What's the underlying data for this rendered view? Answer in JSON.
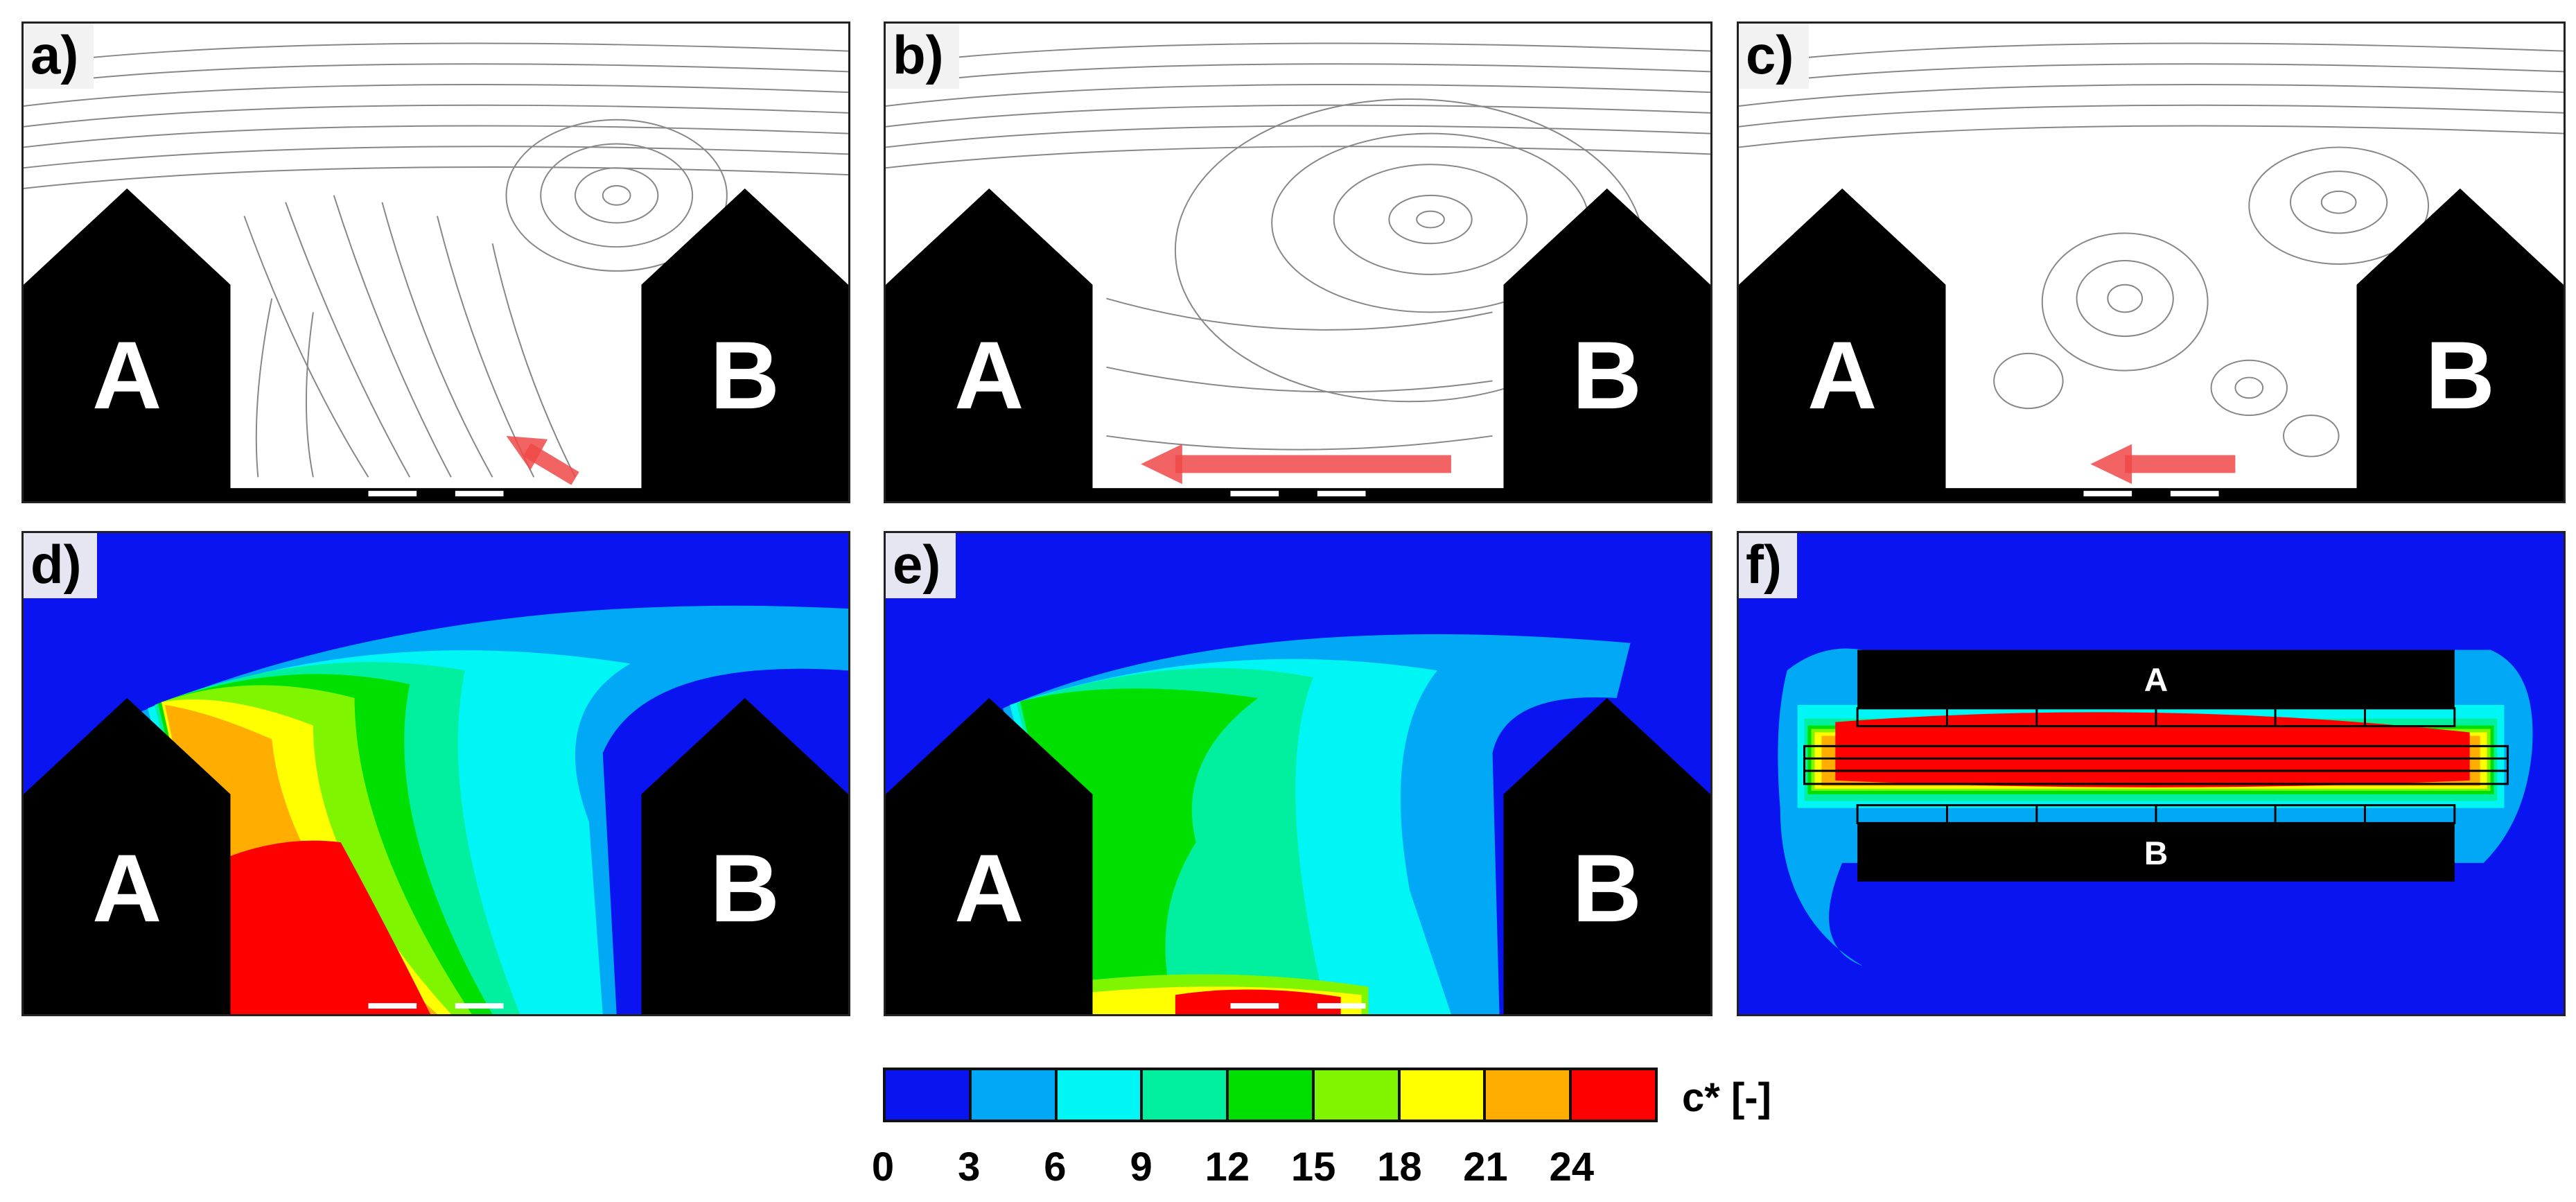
{
  "panels": [
    {
      "label": "a)",
      "kind": "streamline",
      "buildings": [
        "A",
        "B"
      ]
    },
    {
      "label": "b)",
      "kind": "streamline",
      "buildings": [
        "A",
        "B"
      ]
    },
    {
      "label": "c)",
      "kind": "streamline",
      "buildings": [
        "A",
        "B"
      ]
    },
    {
      "label": "d)",
      "kind": "contour",
      "buildings": [
        "A",
        "B"
      ]
    },
    {
      "label": "e)",
      "kind": "contour",
      "buildings": [
        "A",
        "B"
      ]
    },
    {
      "label": "f)",
      "kind": "plan-view",
      "buildings": [
        "A",
        "B"
      ]
    }
  ],
  "colorbar": {
    "unit": "c* [-]",
    "colors": [
      "#0a14f0",
      "#00a8f5",
      "#00f5f5",
      "#00f0a0",
      "#00e000",
      "#80f500",
      "#ffff00",
      "#ffae00",
      "#ff0000"
    ],
    "ticks": [
      "0",
      "3",
      "6",
      "9",
      "12",
      "15",
      "18",
      "21",
      "24"
    ]
  },
  "colors": {
    "building": "#000000",
    "flow_arrow": "#f04848",
    "streamline": "#555555",
    "background_contour": "#0a14f0"
  }
}
